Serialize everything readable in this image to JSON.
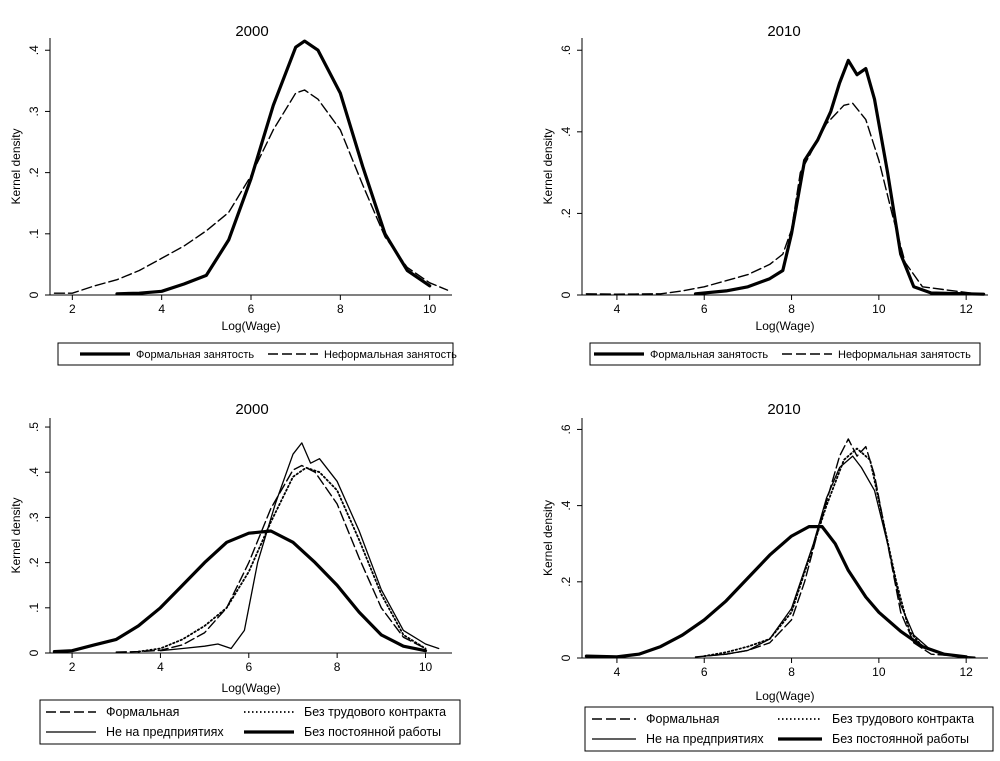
{
  "chart_data": [
    {
      "type": "line",
      "title": "2000",
      "xlabel": "Log(Wage)",
      "ylabel": "Kernel density",
      "xlim": [
        1.5,
        10.5
      ],
      "ylim": [
        0,
        0.42
      ],
      "xticks": [
        "2",
        "4",
        "6",
        "8",
        "10"
      ],
      "yticks": [
        "0",
        ".1",
        ".2",
        ".3",
        ".4"
      ],
      "series": [
        {
          "name": "Формальная занятость",
          "style": "thick",
          "points": [
            [
              3.0,
              0.002
            ],
            [
              3.5,
              0.003
            ],
            [
              4.0,
              0.006
            ],
            [
              4.5,
              0.018
            ],
            [
              5.0,
              0.032
            ],
            [
              5.5,
              0.09
            ],
            [
              6.0,
              0.19
            ],
            [
              6.5,
              0.31
            ],
            [
              7.0,
              0.405
            ],
            [
              7.2,
              0.415
            ],
            [
              7.5,
              0.4
            ],
            [
              8.0,
              0.33
            ],
            [
              8.5,
              0.21
            ],
            [
              9.0,
              0.1
            ],
            [
              9.5,
              0.04
            ],
            [
              10.0,
              0.015
            ]
          ]
        },
        {
          "name": "Неформальная занятость",
          "style": "dash",
          "points": [
            [
              1.6,
              0.003
            ],
            [
              2.0,
              0.003
            ],
            [
              2.5,
              0.015
            ],
            [
              3.0,
              0.025
            ],
            [
              3.5,
              0.04
            ],
            [
              4.0,
              0.06
            ],
            [
              4.5,
              0.08
            ],
            [
              5.0,
              0.105
            ],
            [
              5.5,
              0.135
            ],
            [
              6.0,
              0.195
            ],
            [
              6.5,
              0.27
            ],
            [
              7.0,
              0.33
            ],
            [
              7.2,
              0.335
            ],
            [
              7.5,
              0.32
            ],
            [
              8.0,
              0.27
            ],
            [
              8.5,
              0.18
            ],
            [
              9.0,
              0.095
            ],
            [
              9.5,
              0.045
            ],
            [
              10.0,
              0.02
            ],
            [
              10.4,
              0.008
            ]
          ]
        }
      ]
    },
    {
      "type": "line",
      "title": "2010",
      "xlabel": "Log(Wage)",
      "ylabel": "Kernel density",
      "xlim": [
        3.2,
        12.5
      ],
      "ylim": [
        0,
        0.63
      ],
      "xticks": [
        "4",
        "6",
        "8",
        "10",
        "12"
      ],
      "yticks": [
        "0",
        ".2",
        ".4",
        ".6"
      ],
      "series": [
        {
          "name": "Формальная занятость",
          "style": "thick",
          "points": [
            [
              5.8,
              0.003
            ],
            [
              6.5,
              0.01
            ],
            [
              7.0,
              0.02
            ],
            [
              7.5,
              0.04
            ],
            [
              7.8,
              0.06
            ],
            [
              8.0,
              0.15
            ],
            [
              8.3,
              0.33
            ],
            [
              8.6,
              0.38
            ],
            [
              8.9,
              0.45
            ],
            [
              9.1,
              0.52
            ],
            [
              9.3,
              0.575
            ],
            [
              9.5,
              0.54
            ],
            [
              9.7,
              0.555
            ],
            [
              9.9,
              0.48
            ],
            [
              10.2,
              0.3
            ],
            [
              10.5,
              0.1
            ],
            [
              10.8,
              0.02
            ],
            [
              11.2,
              0.005
            ],
            [
              12.4,
              0.002
            ]
          ]
        },
        {
          "name": "Неформальная занятость",
          "style": "dash",
          "points": [
            [
              3.3,
              0.003
            ],
            [
              4.0,
              0.002
            ],
            [
              5.0,
              0.003
            ],
            [
              5.5,
              0.01
            ],
            [
              6.0,
              0.02
            ],
            [
              6.5,
              0.035
            ],
            [
              7.0,
              0.05
            ],
            [
              7.5,
              0.075
            ],
            [
              7.8,
              0.1
            ],
            [
              8.0,
              0.16
            ],
            [
              8.2,
              0.3
            ],
            [
              8.5,
              0.36
            ],
            [
              8.8,
              0.42
            ],
            [
              9.2,
              0.465
            ],
            [
              9.4,
              0.47
            ],
            [
              9.7,
              0.43
            ],
            [
              10.0,
              0.33
            ],
            [
              10.3,
              0.2
            ],
            [
              10.6,
              0.08
            ],
            [
              11.0,
              0.02
            ],
            [
              12.3,
              0.002
            ]
          ]
        }
      ]
    },
    {
      "type": "line",
      "title": "2000",
      "xlabel": "Log(Wage)",
      "ylabel": "Kernel density",
      "xlim": [
        1.5,
        10.6
      ],
      "ylim": [
        0,
        0.52
      ],
      "xticks": [
        "2",
        "4",
        "6",
        "8",
        "10"
      ],
      "yticks": [
        "0",
        ".1",
        ".2",
        ".3",
        ".4",
        ".5"
      ],
      "series": [
        {
          "name": "Формальная",
          "style": "dash",
          "points": [
            [
              3.0,
              0.002
            ],
            [
              3.5,
              0.003
            ],
            [
              4.0,
              0.006
            ],
            [
              4.5,
              0.018
            ],
            [
              5.0,
              0.045
            ],
            [
              5.5,
              0.1
            ],
            [
              6.0,
              0.2
            ],
            [
              6.5,
              0.32
            ],
            [
              7.0,
              0.405
            ],
            [
              7.2,
              0.415
            ],
            [
              7.5,
              0.4
            ],
            [
              8.0,
              0.33
            ],
            [
              8.5,
              0.21
            ],
            [
              9.0,
              0.1
            ],
            [
              9.5,
              0.035
            ],
            [
              10.0,
              0.01
            ]
          ]
        },
        {
          "name": "Без трудового контракта",
          "style": "dot",
          "points": [
            [
              3.5,
              0.003
            ],
            [
              4.0,
              0.01
            ],
            [
              4.5,
              0.03
            ],
            [
              5.0,
              0.06
            ],
            [
              5.5,
              0.1
            ],
            [
              6.0,
              0.18
            ],
            [
              6.5,
              0.29
            ],
            [
              7.0,
              0.39
            ],
            [
              7.3,
              0.41
            ],
            [
              7.6,
              0.4
            ],
            [
              8.0,
              0.36
            ],
            [
              8.5,
              0.25
            ],
            [
              9.0,
              0.13
            ],
            [
              9.5,
              0.04
            ],
            [
              10.0,
              0.01
            ]
          ]
        },
        {
          "name": "Не на предприятиях",
          "style": "thin",
          "points": [
            [
              4.0,
              0.005
            ],
            [
              4.5,
              0.01
            ],
            [
              5.0,
              0.015
            ],
            [
              5.3,
              0.02
            ],
            [
              5.6,
              0.01
            ],
            [
              5.9,
              0.05
            ],
            [
              6.2,
              0.2
            ],
            [
              6.6,
              0.33
            ],
            [
              7.0,
              0.44
            ],
            [
              7.2,
              0.465
            ],
            [
              7.4,
              0.42
            ],
            [
              7.6,
              0.43
            ],
            [
              8.0,
              0.38
            ],
            [
              8.5,
              0.27
            ],
            [
              9.0,
              0.14
            ],
            [
              9.5,
              0.05
            ],
            [
              10.0,
              0.02
            ],
            [
              10.3,
              0.01
            ]
          ]
        },
        {
          "name": "Без постоянной работы",
          "style": "thick",
          "points": [
            [
              1.6,
              0.003
            ],
            [
              2.0,
              0.005
            ],
            [
              2.5,
              0.018
            ],
            [
              3.0,
              0.03
            ],
            [
              3.5,
              0.06
            ],
            [
              4.0,
              0.1
            ],
            [
              4.5,
              0.15
            ],
            [
              5.0,
              0.2
            ],
            [
              5.5,
              0.245
            ],
            [
              6.0,
              0.265
            ],
            [
              6.5,
              0.27
            ],
            [
              7.0,
              0.245
            ],
            [
              7.5,
              0.2
            ],
            [
              8.0,
              0.15
            ],
            [
              8.5,
              0.09
            ],
            [
              9.0,
              0.04
            ],
            [
              9.5,
              0.015
            ],
            [
              10.0,
              0.005
            ]
          ]
        }
      ]
    },
    {
      "type": "line",
      "title": "2010",
      "xlabel": "Log(Wage)",
      "ylabel": "Kernel density",
      "xlim": [
        3.2,
        12.5
      ],
      "ylim": [
        0,
        0.63
      ],
      "xticks": [
        "4",
        "6",
        "8",
        "10",
        "12"
      ],
      "yticks": [
        "0",
        ".2",
        ".4",
        ".6"
      ],
      "series": [
        {
          "name": "Формальная",
          "style": "dash",
          "points": [
            [
              5.8,
              0.003
            ],
            [
              6.5,
              0.01
            ],
            [
              7.0,
              0.02
            ],
            [
              7.5,
              0.04
            ],
            [
              8.0,
              0.1
            ],
            [
              8.3,
              0.2
            ],
            [
              8.6,
              0.33
            ],
            [
              8.9,
              0.45
            ],
            [
              9.1,
              0.53
            ],
            [
              9.3,
              0.575
            ],
            [
              9.5,
              0.53
            ],
            [
              9.7,
              0.555
            ],
            [
              9.9,
              0.48
            ],
            [
              10.2,
              0.3
            ],
            [
              10.5,
              0.12
            ],
            [
              10.8,
              0.04
            ],
            [
              11.2,
              0.01
            ],
            [
              12.2,
              0.002
            ]
          ]
        },
        {
          "name": "Без трудового контракта",
          "style": "dot",
          "points": [
            [
              6.0,
              0.005
            ],
            [
              6.5,
              0.015
            ],
            [
              7.0,
              0.03
            ],
            [
              7.5,
              0.05
            ],
            [
              8.0,
              0.12
            ],
            [
              8.4,
              0.26
            ],
            [
              8.8,
              0.4
            ],
            [
              9.2,
              0.52
            ],
            [
              9.5,
              0.55
            ],
            [
              9.8,
              0.52
            ],
            [
              10.1,
              0.36
            ],
            [
              10.4,
              0.2
            ],
            [
              10.7,
              0.07
            ],
            [
              11.0,
              0.03
            ],
            [
              11.5,
              0.01
            ]
          ]
        },
        {
          "name": "Не на предприятиях",
          "style": "thin",
          "points": [
            [
              6.0,
              0.005
            ],
            [
              6.5,
              0.01
            ],
            [
              7.0,
              0.02
            ],
            [
              7.5,
              0.05
            ],
            [
              8.0,
              0.13
            ],
            [
              8.5,
              0.3
            ],
            [
              8.8,
              0.42
            ],
            [
              9.1,
              0.5
            ],
            [
              9.4,
              0.53
            ],
            [
              9.6,
              0.5
            ],
            [
              9.9,
              0.44
            ],
            [
              10.2,
              0.3
            ],
            [
              10.5,
              0.14
            ],
            [
              10.8,
              0.06
            ],
            [
              11.2,
              0.02
            ],
            [
              11.7,
              0.005
            ]
          ]
        },
        {
          "name": "Без постоянной работы",
          "style": "thick",
          "points": [
            [
              3.3,
              0.005
            ],
            [
              4.0,
              0.003
            ],
            [
              4.5,
              0.01
            ],
            [
              5.0,
              0.03
            ],
            [
              5.5,
              0.06
            ],
            [
              6.0,
              0.1
            ],
            [
              6.5,
              0.15
            ],
            [
              7.0,
              0.21
            ],
            [
              7.5,
              0.27
            ],
            [
              8.0,
              0.32
            ],
            [
              8.4,
              0.345
            ],
            [
              8.7,
              0.345
            ],
            [
              9.0,
              0.3
            ],
            [
              9.3,
              0.23
            ],
            [
              9.7,
              0.16
            ],
            [
              10.0,
              0.12
            ],
            [
              10.5,
              0.07
            ],
            [
              11.0,
              0.03
            ],
            [
              11.5,
              0.01
            ],
            [
              12.0,
              0.003
            ]
          ]
        }
      ]
    }
  ]
}
